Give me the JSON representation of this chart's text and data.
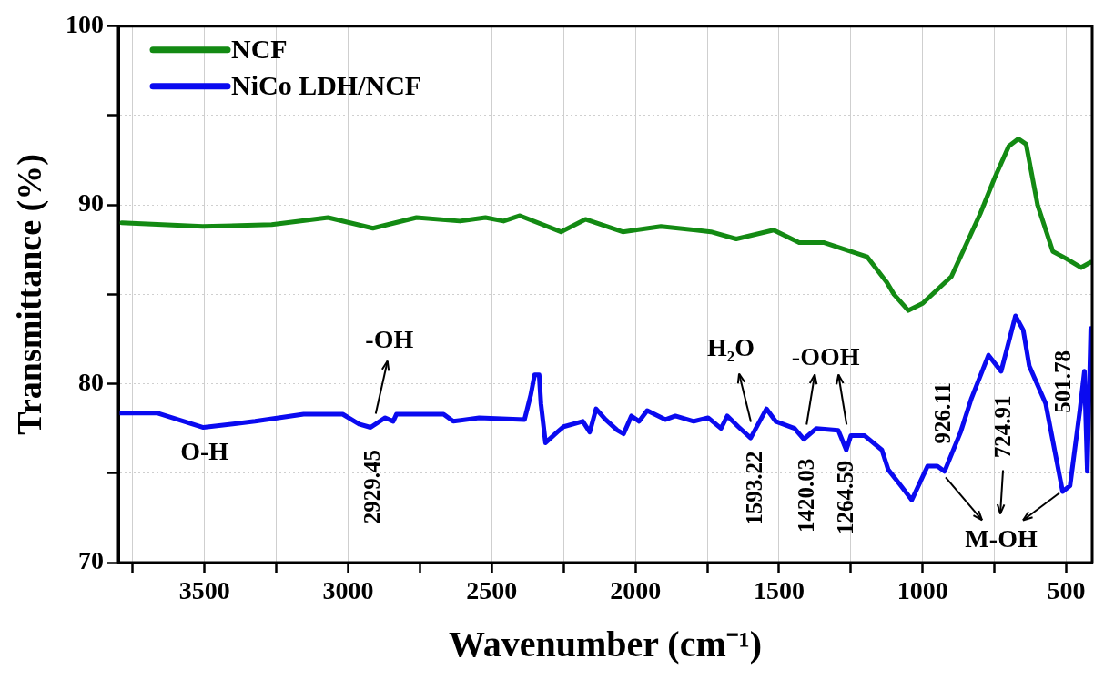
{
  "chart_data": {
    "type": "line",
    "xlabel": "Wavenumber (cm⁻¹)",
    "ylabel": "Transmittance (%)",
    "xlim": [
      3800,
      410
    ],
    "ylim": [
      70,
      100
    ],
    "xticks": [
      {
        "value": 3750,
        "label": null
      },
      3500,
      {
        "value": 3250,
        "label": null
      },
      3000,
      {
        "value": 2750,
        "label": null
      },
      2500,
      {
        "value": 2250,
        "label": null
      },
      2000,
      {
        "value": 1750,
        "label": null
      },
      1500,
      {
        "value": 1250,
        "label": null
      },
      1000,
      {
        "value": 750,
        "label": null
      },
      500
    ],
    "yticks": [
      70,
      {
        "value": 75,
        "label": null
      },
      80,
      {
        "value": 85,
        "label": null
      },
      90,
      {
        "value": 95,
        "label": null
      },
      100
    ],
    "grid": true,
    "legend": "top left",
    "line_style": "solid",
    "marker": "none",
    "series": [
      {
        "name": "NCF",
        "color": "#138a13",
        "x": [
          3788,
          3506,
          3266,
          3070,
          2914,
          2762,
          2611,
          2522,
          2459,
          2402,
          2259,
          2174,
          2044,
          1911,
          1737,
          1649,
          1519,
          1430,
          1345,
          1193,
          1126,
          1100,
          1050,
          1000,
          900,
          800,
          750,
          700,
          667,
          640,
          600,
          547,
          500,
          449,
          415
        ],
        "values": [
          89.0,
          88.8,
          88.9,
          89.3,
          88.7,
          89.3,
          89.1,
          89.3,
          89.1,
          89.4,
          88.5,
          89.2,
          88.5,
          88.8,
          88.5,
          88.1,
          88.6,
          87.9,
          87.9,
          87.1,
          85.7,
          85.0,
          84.1,
          84.5,
          86.0,
          89.5,
          91.5,
          93.3,
          93.7,
          93.4,
          90.0,
          87.4,
          87.0,
          86.5,
          86.8
        ]
      },
      {
        "name": "NiCo LDH/NCF",
        "color": "#0a0af0",
        "x": [
          3793,
          3663,
          3504,
          3324,
          3155,
          3019,
          2962,
          2922,
          2871,
          2843,
          2832,
          2668,
          2634,
          2544,
          2386,
          2364,
          2351,
          2335,
          2329,
          2313,
          2272,
          2250,
          2183,
          2159,
          2137,
          2104,
          2063,
          2041,
          2014,
          1987,
          1959,
          1895,
          1861,
          1797,
          1747,
          1702,
          1680,
          1642,
          1599,
          1544,
          1512,
          1446,
          1414,
          1370,
          1294,
          1266,
          1250,
          1202,
          1142,
          1120,
          1076,
          1038,
          1009,
          983,
          949,
          924,
          868,
          830,
          771,
          727,
          677,
          650,
          629,
          572,
          513,
          487,
          453,
          437,
          427,
          415
        ],
        "values": [
          78.36,
          78.36,
          77.56,
          77.9,
          78.3,
          78.3,
          77.75,
          77.56,
          78.1,
          77.9,
          78.3,
          78.3,
          77.9,
          78.1,
          78.0,
          79.4,
          80.5,
          80.5,
          78.9,
          76.7,
          77.3,
          77.6,
          77.9,
          77.3,
          78.6,
          78.0,
          77.4,
          77.2,
          78.2,
          77.9,
          78.5,
          78.0,
          78.2,
          77.9,
          78.1,
          77.5,
          78.2,
          77.6,
          76.97,
          78.6,
          77.9,
          77.5,
          76.9,
          77.5,
          77.4,
          76.3,
          77.1,
          77.1,
          76.3,
          75.2,
          74.3,
          73.5,
          74.5,
          75.4,
          75.4,
          75.1,
          77.3,
          79.2,
          81.6,
          80.7,
          83.8,
          83.0,
          81.0,
          78.9,
          73.97,
          74.3,
          78.5,
          80.7,
          75.1,
          83.1
        ]
      }
    ],
    "annotations": [
      {
        "text": "O-H",
        "x": 3500,
        "y": 77.56
      },
      {
        "text": "-OH",
        "x": 2929.45,
        "y": 77.56
      },
      {
        "text": "2929.45",
        "x": 2929.45,
        "y": 77.56
      },
      "H₂O",
      {
        "text": "1593.22",
        "x": 1593.22,
        "y": 76.97
      },
      {
        "text": "-OOH",
        "x": 1420.03,
        "y": 76.9
      },
      {
        "text": "1420.03",
        "x": 1420.03,
        "y": 76.9
      },
      {
        "text": "1264.59",
        "x": 1264.59,
        "y": 76.3
      },
      {
        "text": "926.11",
        "x": 926.11,
        "y": 75.1
      },
      {
        "text": "724.91",
        "x": 724.91,
        "y": 80.8
      },
      "501.78",
      {
        "text": "M-OH",
        "x": 501.78,
        "y": 74.0
      }
    ]
  }
}
